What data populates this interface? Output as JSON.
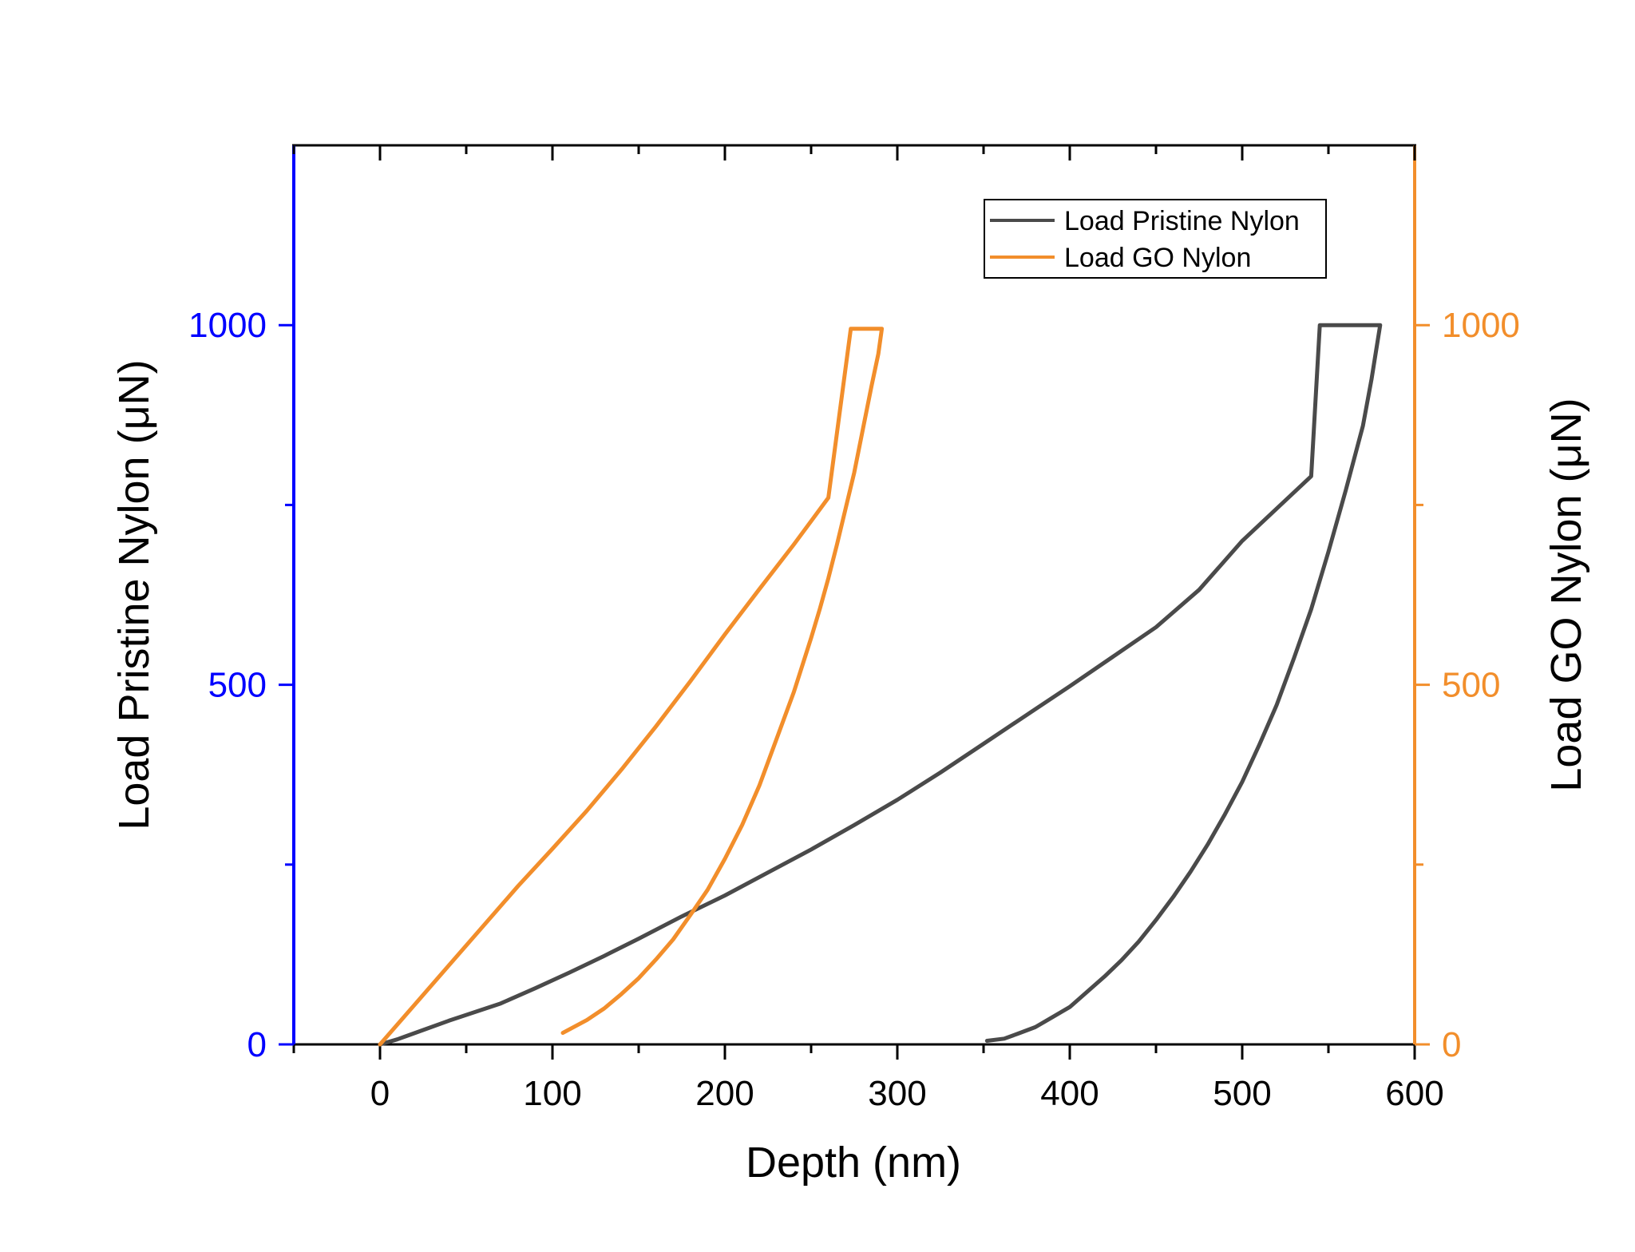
{
  "chart_data": {
    "type": "line",
    "title": "",
    "xlabel": "Depth (nm)",
    "ylabel_left": "Load Pristine Nylon (μN)",
    "ylabel_right": "Load GO Nylon (μN)",
    "xlim": [
      -50,
      600
    ],
    "ylim": [
      0,
      1250
    ],
    "x_ticks": [
      0,
      100,
      200,
      300,
      400,
      500,
      600
    ],
    "x_tick_labels": [
      "0",
      "100",
      "200",
      "300",
      "400",
      "500",
      "600"
    ],
    "y_ticks_labeled": [
      0,
      500,
      1000
    ],
    "y_tick_labels": [
      "0",
      "500",
      "1000"
    ],
    "grid": false,
    "legend_position": "top-right",
    "colors": {
      "left_axis": "#0000ff",
      "right_axis": "#f28e2b",
      "pristine": "#4a4a4a",
      "go": "#f28e2b",
      "frame": "#000000"
    },
    "series": [
      {
        "name": "Load Pristine Nylon",
        "axis": "left",
        "x": [
          0,
          10,
          25,
          40,
          55,
          70,
          90,
          110,
          130,
          150,
          175,
          200,
          225,
          250,
          275,
          300,
          325,
          350,
          375,
          400,
          425,
          450,
          475,
          500,
          520,
          540,
          545,
          580,
          575,
          570,
          560,
          550,
          540,
          530,
          520,
          510,
          500,
          490,
          480,
          470,
          460,
          450,
          440,
          430,
          420,
          410,
          400,
          390,
          380,
          370,
          362,
          352
        ],
        "y": [
          0,
          7,
          20,
          33,
          45,
          57,
          78,
          100,
          123,
          147,
          178,
          207,
          239,
          271,
          305,
          340,
          378,
          418,
          458,
          498,
          539,
          580,
          632,
          700,
          745,
          790,
          1000,
          1000,
          925,
          860,
          770,
          685,
          605,
          537,
          472,
          417,
          365,
          320,
          278,
          240,
          205,
          173,
          143,
          117,
          94,
          73,
          52,
          38,
          24,
          15,
          8,
          5
        ]
      },
      {
        "name": "Load GO Nylon",
        "axis": "right",
        "x": [
          0,
          20,
          40,
          60,
          80,
          100,
          120,
          140,
          160,
          180,
          200,
          220,
          240,
          260,
          273,
          291,
          289,
          285,
          280,
          275,
          270,
          265,
          260,
          255,
          250,
          240,
          230,
          220,
          210,
          200,
          190,
          180,
          170,
          160,
          150,
          140,
          130,
          120,
          106
        ],
        "y": [
          0,
          55,
          110,
          165,
          220,
          272,
          325,
          382,
          442,
          505,
          570,
          633,
          695,
          760,
          995,
          995,
          960,
          915,
          855,
          795,
          745,
          695,
          648,
          605,
          565,
          490,
          425,
          360,
          305,
          258,
          215,
          180,
          146,
          118,
          92,
          70,
          50,
          34,
          16
        ]
      }
    ]
  }
}
